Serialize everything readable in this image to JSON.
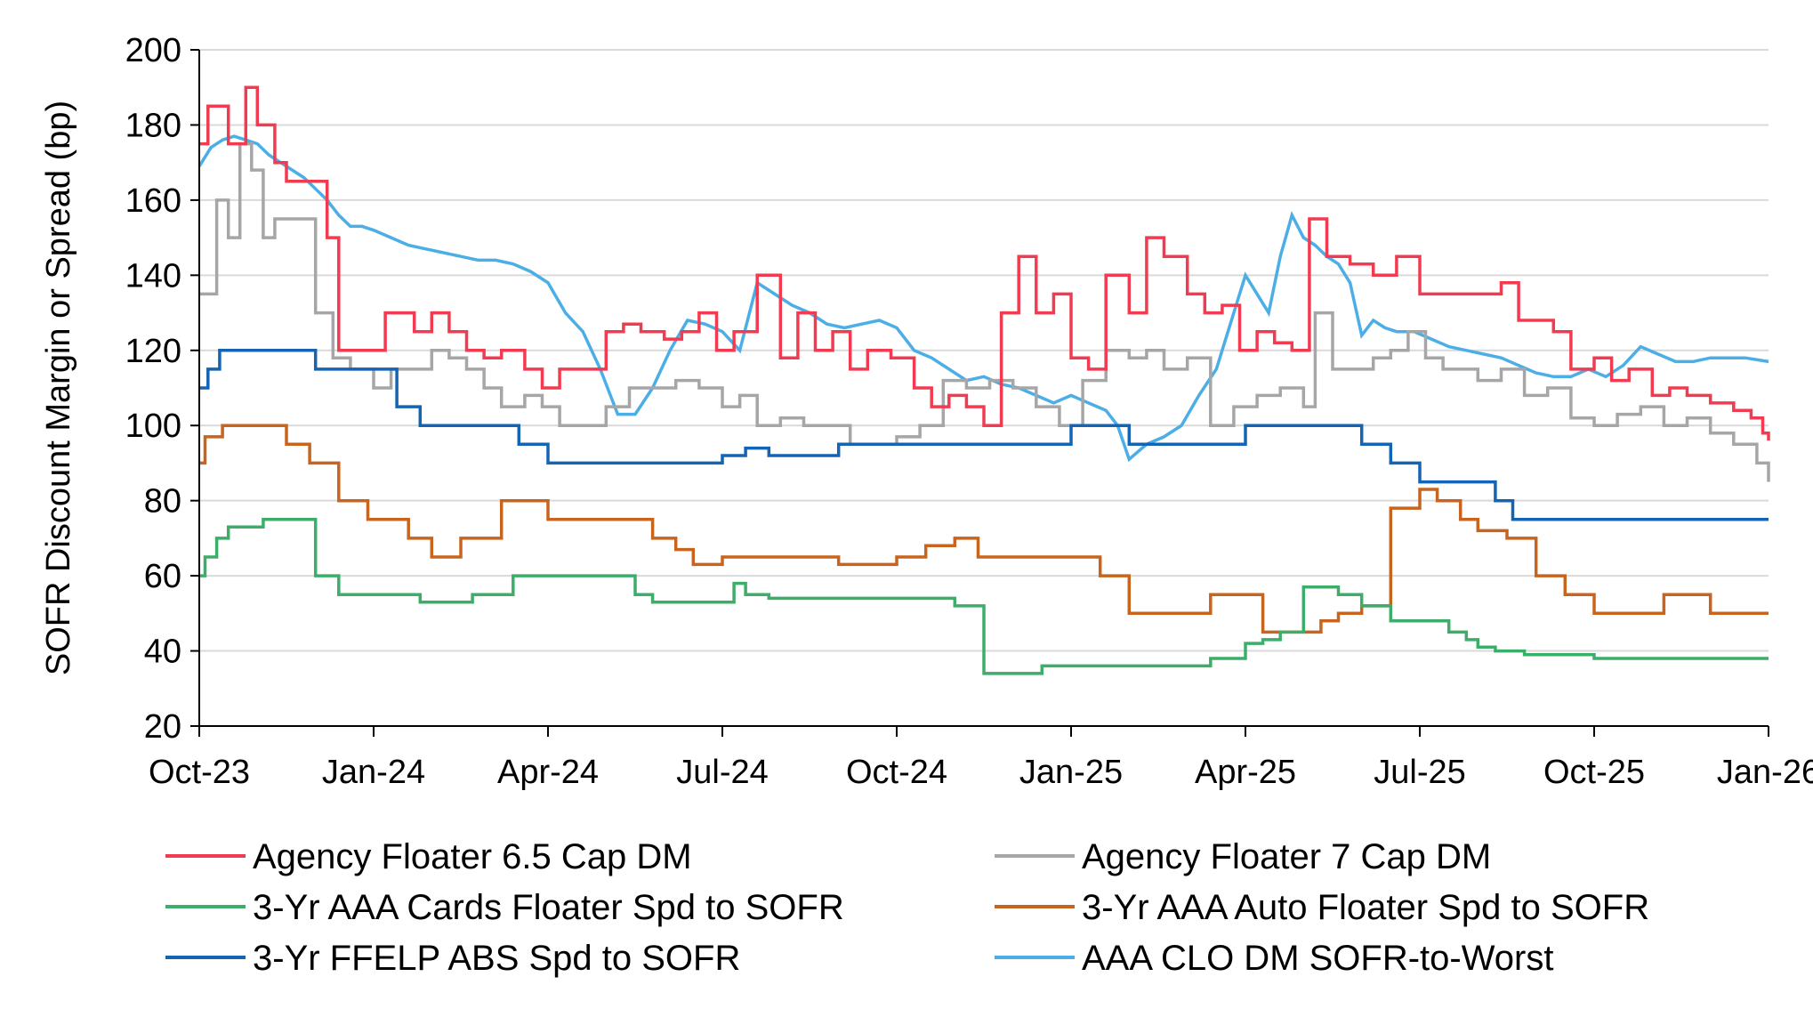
{
  "chart_data": {
    "type": "line",
    "title": "",
    "xlabel": "",
    "ylabel": "SOFR Discount Margin or  Spread (bp)",
    "ylim": [
      20,
      200
    ],
    "yticks": [
      20,
      40,
      60,
      80,
      100,
      120,
      140,
      160,
      180,
      200
    ],
    "xlim": [
      0,
      27
    ],
    "xtick_values": [
      0,
      3,
      6,
      9,
      12,
      15,
      18,
      21,
      24,
      27
    ],
    "xtick_labels": [
      "Oct-23",
      "Jan-24",
      "Apr-24",
      "Jul-24",
      "Oct-24",
      "Jan-25",
      "Apr-25",
      "Jul-25",
      "Oct-25",
      "Jan-26"
    ],
    "grid": "horizontal",
    "legend_position": "bottom",
    "x_unit": "months since Oct-2023",
    "series": [
      {
        "name": "Agency Floater 6.5 Cap DM",
        "color": "#F23B50",
        "style": "step",
        "x": [
          0,
          0.15,
          0.5,
          0.8,
          1.0,
          1.3,
          1.5,
          1.8,
          2.1,
          2.2,
          2.4,
          2.8,
          3.2,
          3.7,
          4.0,
          4.3,
          4.6,
          4.9,
          5.2,
          5.6,
          5.9,
          6.2,
          6.6,
          7.0,
          7.3,
          7.6,
          8.0,
          8.3,
          8.6,
          8.9,
          9.2,
          9.6,
          10.0,
          10.3,
          10.6,
          10.9,
          11.2,
          11.5,
          11.9,
          12.3,
          12.6,
          12.9,
          13.2,
          13.5,
          13.8,
          14.1,
          14.4,
          14.7,
          15.0,
          15.3,
          15.6,
          16.0,
          16.3,
          16.6,
          17.0,
          17.3,
          17.6,
          17.9,
          18.2,
          18.5,
          18.8,
          19.1,
          19.4,
          19.8,
          20.2,
          20.6,
          21.0,
          21.4,
          21.8,
          22.1,
          22.4,
          22.7,
          23.0,
          23.3,
          23.6,
          24.0,
          24.3,
          24.6,
          25.0,
          25.3,
          25.6,
          26.0,
          26.4,
          26.7,
          26.9,
          27.0
        ],
        "values": [
          175,
          185,
          175,
          190,
          180,
          170,
          165,
          165,
          165,
          150,
          120,
          120,
          130,
          125,
          130,
          125,
          120,
          118,
          120,
          115,
          110,
          115,
          115,
          125,
          127,
          125,
          123,
          125,
          130,
          120,
          125,
          140,
          118,
          130,
          120,
          125,
          115,
          120,
          118,
          110,
          105,
          108,
          105,
          100,
          130,
          145,
          130,
          135,
          118,
          115,
          140,
          130,
          150,
          145,
          135,
          130,
          132,
          120,
          125,
          122,
          120,
          155,
          145,
          143,
          140,
          145,
          135,
          135,
          135,
          135,
          138,
          128,
          128,
          125,
          115,
          118,
          112,
          115,
          108,
          110,
          108,
          106,
          104,
          102,
          98,
          96
        ]
      },
      {
        "name": "Agency Floater 7 Cap DM",
        "color": "#A6A6A6",
        "style": "step",
        "x": [
          0,
          0.1,
          0.3,
          0.5,
          0.7,
          0.9,
          1.1,
          1.3,
          1.6,
          2.0,
          2.3,
          2.6,
          3.0,
          3.3,
          3.6,
          4.0,
          4.3,
          4.6,
          4.9,
          5.2,
          5.6,
          5.9,
          6.2,
          6.6,
          7.0,
          7.4,
          7.8,
          8.2,
          8.6,
          9.0,
          9.3,
          9.6,
          10.0,
          10.4,
          10.8,
          11.2,
          11.6,
          12.0,
          12.4,
          12.8,
          13.2,
          13.6,
          14.0,
          14.4,
          14.8,
          15.2,
          15.6,
          16.0,
          16.3,
          16.6,
          17.0,
          17.4,
          17.8,
          18.2,
          18.6,
          19.0,
          19.2,
          19.5,
          19.8,
          20.2,
          20.5,
          20.8,
          21.1,
          21.4,
          21.7,
          22.0,
          22.4,
          22.8,
          23.2,
          23.6,
          24.0,
          24.4,
          24.8,
          25.2,
          25.6,
          26.0,
          26.4,
          26.8,
          27.0
        ],
        "values": [
          135,
          135,
          160,
          150,
          175,
          168,
          150,
          155,
          155,
          130,
          118,
          115,
          110,
          115,
          115,
          120,
          118,
          115,
          110,
          105,
          108,
          105,
          100,
          100,
          105,
          110,
          110,
          112,
          110,
          105,
          108,
          100,
          102,
          100,
          100,
          95,
          95,
          97,
          100,
          112,
          110,
          112,
          110,
          105,
          100,
          112,
          120,
          118,
          120,
          115,
          118,
          100,
          105,
          108,
          110,
          105,
          130,
          115,
          115,
          118,
          120,
          125,
          118,
          115,
          115,
          112,
          115,
          108,
          110,
          102,
          100,
          103,
          105,
          100,
          102,
          98,
          95,
          90,
          85
        ]
      },
      {
        "name": "3-Yr AAA Cards  Floater Spd to SOFR",
        "color": "#3DAE6A",
        "style": "step",
        "x": [
          0,
          0.1,
          0.3,
          0.5,
          0.7,
          1.1,
          1.5,
          2.0,
          2.4,
          3.0,
          3.8,
          4.7,
          5.4,
          6.0,
          7.0,
          7.5,
          7.8,
          8.5,
          9.0,
          9.2,
          9.4,
          9.8,
          10.0,
          10.5,
          11.0,
          11.5,
          12.0,
          12.5,
          13.0,
          13.5,
          13.7,
          14.0,
          14.5,
          15.0,
          15.5,
          16.0,
          16.5,
          17.0,
          17.4,
          17.8,
          18.0,
          18.3,
          18.6,
          19.0,
          19.3,
          19.6,
          20.0,
          20.5,
          21.0,
          21.2,
          21.5,
          21.8,
          22.0,
          22.3,
          22.8,
          23.2,
          24.0,
          24.5,
          25.0,
          25.5,
          26.0,
          26.5,
          27.0
        ],
        "values": [
          60,
          65,
          70,
          73,
          73,
          75,
          75,
          60,
          55,
          55,
          53,
          55,
          60,
          60,
          60,
          55,
          53,
          53,
          53,
          58,
          55,
          54,
          54,
          54,
          54,
          54,
          54,
          54,
          52,
          34,
          34,
          34,
          36,
          36,
          36,
          36,
          36,
          36,
          38,
          38,
          42,
          43,
          45,
          57,
          57,
          55,
          52,
          48,
          48,
          48,
          45,
          43,
          41,
          40,
          39,
          39,
          38,
          38,
          38,
          38,
          38,
          38,
          38
        ]
      },
      {
        "name": "3-Yr AAA Auto Floater Spd to SOFR",
        "color": "#C8641E",
        "style": "step",
        "x": [
          0,
          0.1,
          0.4,
          0.8,
          1.2,
          1.5,
          1.9,
          2.4,
          2.9,
          3.3,
          3.6,
          4.0,
          4.5,
          4.9,
          5.2,
          5.5,
          6.0,
          6.5,
          7.0,
          7.5,
          7.8,
          8.2,
          8.5,
          9.0,
          9.5,
          10.0,
          10.5,
          11.0,
          11.5,
          12.0,
          12.5,
          13.0,
          13.4,
          13.8,
          14.2,
          14.6,
          15.0,
          15.5,
          16.0,
          16.5,
          17.0,
          17.4,
          17.8,
          18.0,
          18.3,
          18.6,
          19.0,
          19.3,
          19.6,
          20.0,
          20.5,
          21.0,
          21.3,
          21.7,
          22.0,
          22.5,
          23.0,
          23.5,
          24.0,
          24.4,
          24.8,
          25.2,
          25.6,
          26.0,
          26.5,
          27.0
        ],
        "values": [
          90,
          97,
          100,
          100,
          100,
          95,
          90,
          80,
          75,
          75,
          70,
          65,
          70,
          70,
          80,
          80,
          75,
          75,
          75,
          75,
          70,
          67,
          63,
          65,
          65,
          65,
          65,
          63,
          63,
          65,
          68,
          70,
          65,
          65,
          65,
          65,
          65,
          60,
          50,
          50,
          50,
          55,
          55,
          55,
          45,
          45,
          45,
          48,
          50,
          52,
          78,
          83,
          80,
          75,
          72,
          70,
          60,
          55,
          50,
          50,
          50,
          55,
          55,
          50,
          50,
          50
        ]
      },
      {
        "name": "3-Yr FFELP ABS Spd to SOFR",
        "color": "#1464B4",
        "style": "step",
        "x": [
          0,
          0.15,
          0.35,
          0.7,
          1.5,
          2.0,
          2.5,
          3.0,
          3.4,
          3.8,
          4.2,
          4.5,
          5.5,
          6.0,
          6.5,
          7.0,
          8.0,
          8.5,
          9.0,
          9.4,
          9.8,
          10.2,
          10.6,
          11.0,
          11.5,
          12.0,
          12.5,
          13.0,
          14.0,
          14.5,
          15.0,
          15.5,
          16.0,
          16.5,
          17.0,
          17.5,
          18.0,
          18.5,
          19.0,
          19.5,
          20.0,
          20.5,
          21.0,
          21.5,
          22.0,
          22.3,
          22.6,
          23.0,
          23.5,
          24.0,
          24.5,
          25.0,
          25.5,
          26.0,
          26.5,
          27.0
        ],
        "values": [
          110,
          115,
          120,
          120,
          120,
          115,
          115,
          115,
          105,
          100,
          100,
          100,
          95,
          90,
          90,
          90,
          90,
          90,
          92,
          94,
          92,
          92,
          92,
          95,
          95,
          95,
          95,
          95,
          95,
          95,
          100,
          100,
          95,
          95,
          95,
          95,
          100,
          100,
          100,
          100,
          95,
          90,
          85,
          85,
          85,
          80,
          75,
          75,
          75,
          75,
          75,
          75,
          75,
          75,
          75,
          75
        ]
      },
      {
        "name": "AAA CLO DM SOFR-to-Worst",
        "color": "#4BAEE6",
        "style": "line",
        "x": [
          0,
          0.2,
          0.4,
          0.6,
          0.8,
          1.0,
          1.2,
          1.4,
          1.6,
          1.8,
          2.0,
          2.2,
          2.4,
          2.6,
          2.8,
          3.0,
          3.3,
          3.6,
          3.9,
          4.2,
          4.5,
          4.8,
          5.1,
          5.4,
          5.7,
          6.0,
          6.3,
          6.6,
          6.9,
          7.2,
          7.5,
          7.8,
          8.1,
          8.4,
          8.7,
          9.0,
          9.3,
          9.6,
          9.9,
          10.2,
          10.5,
          10.8,
          11.1,
          11.4,
          11.7,
          12.0,
          12.3,
          12.6,
          12.9,
          13.2,
          13.5,
          13.8,
          14.1,
          14.4,
          14.7,
          15.0,
          15.3,
          15.6,
          15.8,
          16.0,
          16.3,
          16.6,
          16.9,
          17.2,
          17.5,
          17.8,
          18.0,
          18.2,
          18.4,
          18.6,
          18.8,
          19.0,
          19.2,
          19.4,
          19.6,
          19.8,
          20.0,
          20.2,
          20.4,
          20.6,
          20.9,
          21.2,
          21.5,
          21.8,
          22.1,
          22.4,
          22.7,
          23.0,
          23.3,
          23.6,
          23.9,
          24.2,
          24.5,
          24.8,
          25.1,
          25.4,
          25.7,
          26.0,
          26.3,
          26.6,
          27.0
        ],
        "values": [
          169,
          174,
          176,
          177,
          176,
          175,
          172,
          170,
          168,
          166,
          163,
          160,
          156,
          153,
          153,
          152,
          150,
          148,
          147,
          146,
          145,
          144,
          144,
          143,
          141,
          138,
          130,
          125,
          115,
          103,
          103,
          110,
          120,
          128,
          127,
          125,
          120,
          138,
          135,
          132,
          130,
          127,
          126,
          127,
          128,
          126,
          120,
          118,
          115,
          112,
          113,
          111,
          110,
          108,
          106,
          108,
          106,
          104,
          100,
          91,
          95,
          97,
          100,
          108,
          115,
          130,
          140,
          135,
          130,
          145,
          156,
          150,
          148,
          145,
          143,
          138,
          124,
          128,
          126,
          125,
          125,
          123,
          121,
          120,
          119,
          118,
          116,
          114,
          113,
          113,
          115,
          113,
          116,
          121,
          119,
          117,
          117,
          118,
          118,
          118,
          117
        ]
      }
    ]
  }
}
